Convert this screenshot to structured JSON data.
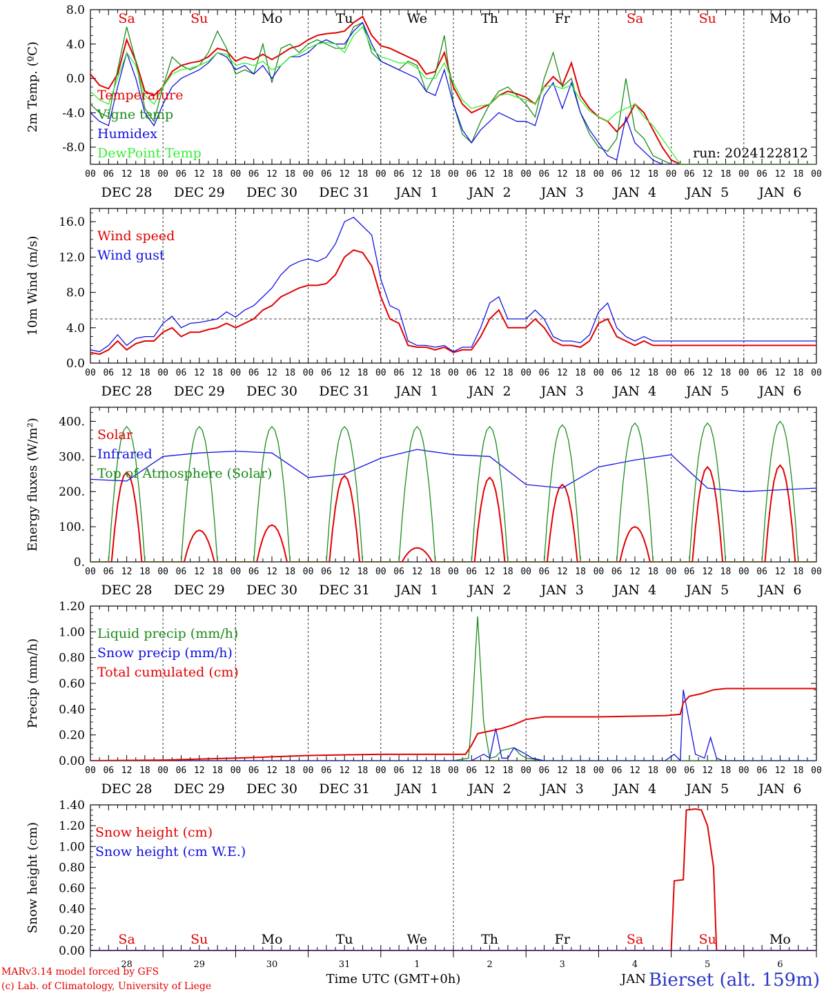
{
  "colors": {
    "red": "#e00000",
    "darkgreen": "#1a8a1a",
    "blue": "#1010e0",
    "lightgreen": "#33ee33",
    "axis": "#000000",
    "weekend": "#e00000"
  },
  "days": {
    "weekdays": [
      "Sa",
      "Su",
      "Mo",
      "Tu",
      "We",
      "Th",
      "Fr",
      "Sa",
      "Su",
      "Mo"
    ],
    "weekend_flags": [
      true,
      true,
      false,
      false,
      false,
      false,
      false,
      true,
      true,
      false
    ],
    "date_labels": [
      "DEC 28",
      "DEC 29",
      "DEC 30",
      "DEC 31",
      "JAN  1",
      "JAN  2",
      "JAN  3",
      "JAN  4",
      "JAN  5",
      "JAN  6"
    ],
    "day_numbers": [
      "28",
      "29",
      "30",
      "31",
      "1",
      "2",
      "3",
      "4",
      "5",
      "6"
    ],
    "hour_ticks": [
      "00",
      "06",
      "12",
      "18"
    ],
    "end_tick": "00"
  },
  "footer": {
    "model": "MARv3.14 model forced by GFS",
    "copyright": "(c) Lab. of Climatology, University of Liege",
    "xlabel": "Time UTC (GMT+0h)",
    "station": "Bierset (alt. 159m)",
    "bottom_month": "JAN"
  },
  "chart_data": [
    {
      "type": "line",
      "ylabel": "2m Temp. (ºC)",
      "ylim": [
        -10,
        8
      ],
      "yticks": [
        "8.0",
        "4.0",
        "0.0",
        "-4.0",
        "-8.0"
      ],
      "ytick_values": [
        8,
        4,
        0,
        -4,
        -8
      ],
      "run_label": "run: 2024122812",
      "x_hours": [
        0,
        3,
        6,
        9,
        12,
        15,
        18,
        21,
        24,
        27,
        30,
        33,
        36,
        39,
        42,
        45,
        48,
        51,
        54,
        57,
        60,
        63,
        66,
        69,
        72,
        75,
        78,
        81,
        84,
        87,
        90,
        93,
        96,
        99,
        102,
        105,
        108,
        111,
        114,
        117,
        120,
        123,
        126,
        129,
        132,
        135,
        138,
        141,
        144,
        147,
        150,
        153,
        156,
        159,
        162,
        165,
        168,
        171,
        174,
        177,
        180,
        183,
        186,
        189,
        192,
        195,
        198,
        201,
        204,
        207,
        210,
        213,
        216,
        219,
        222,
        225,
        228,
        231,
        234,
        237,
        240
      ],
      "series": [
        {
          "name": "Temperature",
          "color": "red",
          "values": [
            0.5,
            -0.8,
            -1.2,
            0.5,
            4.5,
            2.0,
            -1.5,
            -2.0,
            -1.0,
            0.8,
            1.5,
            1.8,
            2.0,
            2.5,
            3.5,
            3.2,
            2.0,
            2.5,
            2.2,
            2.8,
            2.2,
            2.8,
            3.5,
            3.8,
            4.5,
            5.0,
            5.2,
            5.3,
            5.5,
            6.5,
            7.2,
            5.0,
            3.8,
            3.5,
            3.0,
            2.5,
            2.0,
            0.5,
            0.8,
            3.0,
            -1.0,
            -3.0,
            -4.0,
            -3.5,
            -3.0,
            -2.0,
            -1.5,
            -1.8,
            -2.2,
            -3.0,
            -1.0,
            0.2,
            -0.8,
            1.8,
            -2.0,
            -3.5,
            -4.5,
            -5.0,
            -6.2,
            -5.0,
            -3.0,
            -4.0,
            -6.0,
            -8.0,
            -9.5,
            -10,
            -10,
            -10,
            -10,
            -10,
            -10,
            -10,
            -10,
            -10,
            -10,
            -10,
            -10,
            -10,
            -10,
            -10,
            -10
          ]
        },
        {
          "name": "Vigne temp",
          "color": "darkgreen",
          "values": [
            -3.0,
            -4.0,
            -4.5,
            1.0,
            6.0,
            2.0,
            -3.5,
            -5.0,
            -1.0,
            2.5,
            1.5,
            1.0,
            1.5,
            3.0,
            5.5,
            3.5,
            0.5,
            1.0,
            0.5,
            4.0,
            -0.5,
            3.5,
            4.0,
            3.0,
            4.0,
            4.5,
            4.0,
            3.5,
            3.5,
            6.0,
            6.5,
            3.0,
            2.0,
            1.5,
            1.0,
            2.0,
            1.5,
            -1.5,
            0.5,
            5.0,
            -3.0,
            -6.5,
            -7.5,
            -5.0,
            -3.0,
            -1.5,
            -1.0,
            -2.0,
            -3.0,
            -4.5,
            0.0,
            3.0,
            -1.0,
            0.0,
            -4.0,
            -6.5,
            -8.0,
            -8.5,
            -7.0,
            0.0,
            -6.0,
            -7.0,
            -9.0,
            -9.5,
            -10,
            -10,
            -10,
            -10,
            -10,
            -10,
            -10,
            -10,
            -10,
            -10,
            -10,
            -10,
            -10,
            -10,
            -10,
            -10,
            -10
          ]
        },
        {
          "name": "Humidex",
          "color": "blue",
          "values": [
            -4.0,
            -5.0,
            -5.5,
            -1.0,
            3.0,
            0.0,
            -4.0,
            -5.5,
            -3.0,
            -1.0,
            0.0,
            0.5,
            1.0,
            1.8,
            3.0,
            2.5,
            1.0,
            1.5,
            0.5,
            1.5,
            0.0,
            1.5,
            2.5,
            2.5,
            3.0,
            4.0,
            4.5,
            4.0,
            4.0,
            5.5,
            6.5,
            4.0,
            2.0,
            1.5,
            1.0,
            0.5,
            0.0,
            -1.5,
            -2.0,
            1.0,
            -3.0,
            -6.0,
            -7.5,
            -6.0,
            -5.0,
            -4.0,
            -4.5,
            -5.0,
            -5.0,
            -5.5,
            -2.0,
            -0.5,
            -3.5,
            -0.5,
            -4.0,
            -6.0,
            -7.5,
            -9.0,
            -9.5,
            -4.5,
            -7.5,
            -8.5,
            -9.5,
            -10,
            -10,
            -10,
            -10,
            -10,
            -10,
            -10,
            -10,
            -10,
            -10,
            -10,
            -10,
            -10,
            -10,
            -10,
            -10,
            -10,
            -10
          ]
        },
        {
          "name": "DewPoint Temp",
          "color": "lightgreen",
          "values": [
            -1.5,
            -2.5,
            -3.0,
            0.0,
            3.0,
            1.5,
            -2.0,
            -3.0,
            -1.0,
            0.5,
            1.0,
            1.2,
            1.5,
            2.0,
            3.0,
            2.8,
            1.5,
            1.8,
            1.5,
            2.0,
            1.0,
            1.5,
            2.5,
            2.8,
            3.5,
            4.0,
            4.2,
            4.0,
            3.0,
            5.0,
            6.0,
            3.5,
            2.5,
            2.2,
            1.8,
            1.8,
            1.2,
            0.0,
            0.0,
            1.8,
            -0.5,
            -2.5,
            -3.5,
            -3.2,
            -3.0,
            -2.0,
            -1.8,
            -2.2,
            -2.5,
            -3.0,
            -1.0,
            -0.8,
            -1.2,
            -0.8,
            -2.5,
            -3.8,
            -4.5,
            -5.0,
            -4.0,
            -3.5,
            -3.0,
            -4.5,
            -5.5,
            -7.0,
            -8.5,
            -10,
            -10,
            -10,
            -10,
            -10,
            -10,
            -10,
            -10,
            -10,
            -10,
            -10,
            -10,
            -10,
            -10,
            -10,
            -10
          ]
        }
      ],
      "legend": "top-left",
      "grid": "vertical dotted at 00 UTC"
    },
    {
      "type": "line",
      "ylabel": "10m Wind (m/s)",
      "ylim": [
        0,
        17.5
      ],
      "yticks": [
        "16.0",
        "12.0",
        "8.0",
        "4.0",
        "0.0"
      ],
      "ytick_values": [
        16,
        12,
        8,
        4,
        0
      ],
      "reference_line": 5,
      "x_hours": [
        0,
        3,
        6,
        9,
        12,
        15,
        18,
        21,
        24,
        27,
        30,
        33,
        36,
        39,
        42,
        45,
        48,
        51,
        54,
        57,
        60,
        63,
        66,
        69,
        72,
        75,
        78,
        81,
        84,
        87,
        90,
        93,
        96,
        99,
        102,
        105,
        108,
        111,
        114,
        117,
        120,
        123,
        126,
        129,
        132,
        135,
        138,
        141,
        144,
        147,
        150,
        153,
        156,
        159,
        162,
        165,
        168,
        171,
        174,
        177,
        180,
        183,
        186,
        189,
        192,
        195,
        198,
        201,
        204,
        207,
        210,
        213,
        216,
        219,
        222,
        225,
        228,
        231,
        234,
        237,
        240
      ],
      "series": [
        {
          "name": "Wind speed",
          "color": "red",
          "values": [
            1.2,
            1.0,
            1.5,
            2.5,
            1.5,
            2.2,
            2.5,
            2.5,
            3.5,
            4.0,
            3.0,
            3.5,
            3.5,
            3.8,
            4.0,
            4.5,
            4.0,
            4.5,
            5.0,
            6.0,
            6.5,
            7.5,
            8.0,
            8.5,
            8.8,
            8.8,
            9.0,
            10.0,
            12.0,
            12.8,
            12.5,
            11.0,
            7.5,
            5.0,
            4.5,
            2.0,
            1.8,
            1.8,
            1.5,
            1.8,
            1.2,
            1.5,
            1.5,
            3.0,
            5.0,
            6.0,
            4.0,
            4.0,
            4.0,
            5.0,
            4.0,
            2.5,
            2.0,
            2.0,
            1.8,
            2.5,
            4.5,
            5.0,
            3.0,
            2.5,
            2.0,
            2.5,
            2.0,
            2.0,
            2.0,
            2.0,
            2.0,
            2.0,
            2.0,
            2.0,
            2.0,
            2.0,
            2.0,
            2.0,
            2.0,
            2.0,
            2.0,
            2.0,
            2.0,
            2.0,
            2.0
          ]
        },
        {
          "name": "Wind gust",
          "color": "blue",
          "values": [
            1.5,
            1.3,
            2.0,
            3.2,
            2.0,
            2.8,
            3.0,
            3.0,
            4.5,
            5.3,
            4.0,
            4.5,
            4.6,
            4.8,
            5.0,
            5.8,
            5.2,
            6.0,
            6.5,
            7.5,
            8.5,
            10.0,
            11.0,
            11.5,
            11.8,
            11.5,
            12.0,
            13.5,
            16.0,
            16.5,
            15.5,
            14.5,
            9.5,
            6.5,
            6.0,
            2.5,
            2.0,
            2.0,
            1.8,
            2.0,
            1.3,
            1.8,
            1.8,
            4.0,
            6.8,
            7.5,
            5.0,
            5.0,
            5.0,
            6.0,
            5.0,
            3.0,
            2.5,
            2.5,
            2.3,
            3.2,
            5.8,
            6.8,
            4.0,
            3.0,
            2.5,
            3.0,
            2.5,
            2.5,
            2.5,
            2.5,
            2.5,
            2.5,
            2.5,
            2.5,
            2.5,
            2.5,
            2.5,
            2.5,
            2.5,
            2.5,
            2.5,
            2.5,
            2.5,
            2.5,
            2.5
          ]
        }
      ],
      "legend": "top-left"
    },
    {
      "type": "line",
      "ylabel": "Energy fluxes (W/m²)",
      "ylim": [
        0,
        440
      ],
      "yticks": [
        "400.",
        "300.",
        "200.",
        "100.",
        "0."
      ],
      "ytick_values": [
        400,
        300,
        200,
        100,
        0
      ],
      "series": [
        {
          "name": "Solar",
          "color": "red",
          "peaks": [
            255,
            90,
            105,
            245,
            40,
            240,
            220,
            100,
            270,
            275
          ]
        },
        {
          "name": "Infrared",
          "color": "blue",
          "x_hours": [
            0,
            12,
            24,
            30,
            36,
            48,
            60,
            72,
            84,
            96,
            108,
            120,
            132,
            144,
            156,
            168,
            180,
            192,
            204,
            216,
            228,
            240
          ],
          "values": [
            235,
            230,
            300,
            305,
            310,
            315,
            310,
            240,
            250,
            295,
            320,
            305,
            300,
            220,
            210,
            270,
            290,
            305,
            210,
            200,
            205,
            210
          ]
        },
        {
          "name": "Top of Atmosphere (Solar)",
          "color": "darkgreen",
          "peaks": [
            385,
            385,
            385,
            385,
            385,
            385,
            390,
            395,
            395,
            400
          ]
        }
      ],
      "legend": "top-left"
    },
    {
      "type": "line",
      "ylabel": "Precip (mm/h)",
      "ylim": [
        0,
        1.2
      ],
      "yticks": [
        "1.20",
        "1.00",
        "0.80",
        "0.60",
        "0.40",
        "0.20",
        "0.00"
      ],
      "ytick_values": [
        1.2,
        1.0,
        0.8,
        0.6,
        0.4,
        0.2,
        0.0
      ],
      "series": [
        {
          "name": "Liquid precip (mm/h)",
          "color": "darkgreen",
          "x_hours": [
            0,
            120,
            125,
            126,
            128,
            130,
            132,
            134,
            136,
            140,
            142,
            144,
            150,
            240
          ],
          "values": [
            0,
            0,
            0.02,
            0.3,
            1.12,
            0.3,
            0.02,
            0.03,
            0.08,
            0.1,
            0.05,
            0.02,
            0,
            0
          ]
        },
        {
          "name": "Snow precip (mm/h)",
          "color": "blue",
          "x_hours": [
            0,
            126,
            130,
            132,
            134,
            136,
            138,
            140,
            144,
            146,
            150,
            190,
            193,
            195,
            196,
            198,
            200,
            203,
            205,
            207,
            209,
            240
          ],
          "values": [
            0,
            0,
            0.05,
            0.02,
            0.25,
            0.02,
            0.02,
            0.1,
            0.05,
            0.02,
            0,
            0,
            0.05,
            0,
            0.55,
            0.3,
            0.05,
            0.02,
            0.18,
            0.02,
            0,
            0
          ]
        },
        {
          "name": "Total cumulated (cm)",
          "color": "red",
          "x_hours": [
            0,
            24,
            48,
            72,
            96,
            120,
            124,
            126,
            128,
            132,
            136,
            140,
            144,
            150,
            156,
            168,
            190,
            195,
            196,
            198,
            202,
            206,
            210,
            216,
            240
          ],
          "values": [
            0,
            0.005,
            0.02,
            0.04,
            0.05,
            0.05,
            0.05,
            0.12,
            0.21,
            0.23,
            0.25,
            0.28,
            0.32,
            0.34,
            0.34,
            0.34,
            0.35,
            0.36,
            0.45,
            0.5,
            0.52,
            0.55,
            0.56,
            0.56,
            0.56
          ]
        }
      ],
      "legend": "top-left"
    },
    {
      "type": "line",
      "ylabel": "Snow height (cm)",
      "ylim": [
        0,
        1.4
      ],
      "yticks": [
        "1.40",
        "1.20",
        "1.00",
        "0.80",
        "0.60",
        "0.40",
        "0.20",
        "0.00"
      ],
      "ytick_values": [
        1.4,
        1.2,
        1.0,
        0.8,
        0.6,
        0.4,
        0.2,
        0.0
      ],
      "series": [
        {
          "name": "Snow height (cm)",
          "color": "red",
          "x_hours": [
            0,
            192,
            193,
            196,
            197,
            200,
            202,
            204,
            206,
            207,
            208,
            240
          ],
          "values": [
            0,
            0,
            0.67,
            0.68,
            1.35,
            1.36,
            1.35,
            1.2,
            0.8,
            0.0,
            0,
            0
          ]
        },
        {
          "name": "Snow height (cm W.E.)",
          "color": "blue",
          "x_hours": [
            0,
            240
          ],
          "values": [
            0,
            0
          ]
        }
      ],
      "legend": "top-left",
      "grid": "single dotted vertical at Jan 1"
    }
  ]
}
